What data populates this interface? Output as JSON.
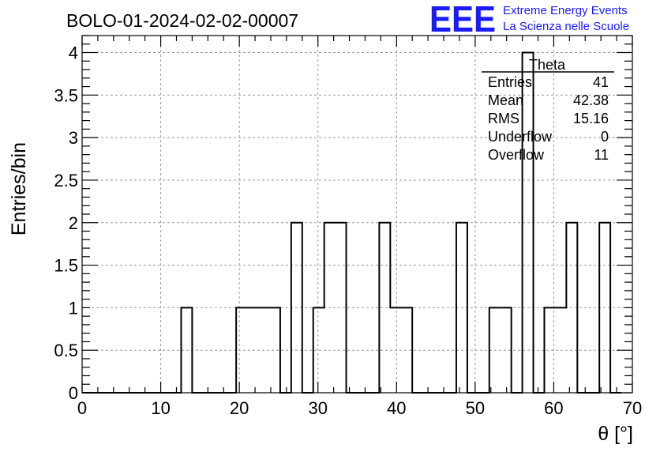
{
  "title": "BOLO-01-2024-02-02-00007",
  "logo": {
    "mark": "EEE",
    "line1": "Extreme Energy Events",
    "line2": "La Scienza nelle Scuole",
    "color": "#1a1aff"
  },
  "stats": {
    "name": "Theta",
    "rows": [
      {
        "label": "Entries",
        "value": "41"
      },
      {
        "label": "Mean",
        "value": "42.38"
      },
      {
        "label": "RMS",
        "value": "15.16"
      },
      {
        "label": "Underflow",
        "value": "0"
      },
      {
        "label": "Overflow",
        "value": "11"
      }
    ]
  },
  "chart_data": {
    "type": "histogram",
    "title": "BOLO-01-2024-02-02-00007",
    "xlabel": "θ [°]",
    "ylabel": "Entries/bin",
    "xlim": [
      0,
      70
    ],
    "ylim": [
      0,
      4.2
    ],
    "grid": true,
    "bin_width": 1.4,
    "x_ticks": [
      0,
      10,
      20,
      30,
      40,
      50,
      60,
      70
    ],
    "x_tick_labels": [
      "0",
      "10",
      "20",
      "30",
      "40",
      "50",
      "60",
      "70"
    ],
    "y_ticks": [
      0,
      0.5,
      1,
      1.5,
      2,
      2.5,
      3,
      3.5,
      4
    ],
    "y_tick_labels": [
      "0",
      "0.5",
      "1",
      "1.5",
      "2",
      "2.5",
      "3",
      "3.5",
      "4"
    ],
    "values": [
      0,
      0,
      0,
      0,
      0,
      0,
      0,
      0,
      0,
      1,
      0,
      0,
      0,
      0,
      1,
      1,
      1,
      1,
      0,
      2,
      0,
      1,
      2,
      2,
      0,
      0,
      0,
      2,
      1,
      1,
      0,
      0,
      0,
      0,
      2,
      0,
      0,
      1,
      1,
      0,
      4,
      0,
      1,
      1,
      2,
      0,
      0,
      2,
      0
    ]
  }
}
